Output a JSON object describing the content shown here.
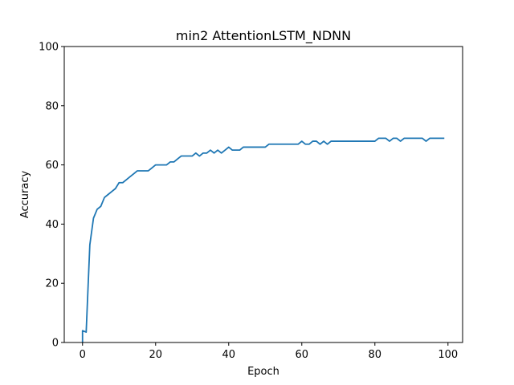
{
  "chart_data": {
    "type": "line",
    "title": "min2 AttentionLSTM_NDNN",
    "xlabel": "Epoch",
    "ylabel": "Accuracy",
    "xlim": [
      -5,
      104
    ],
    "ylim": [
      0,
      100
    ],
    "xticks": [
      0,
      20,
      40,
      60,
      80,
      100
    ],
    "yticks": [
      0,
      20,
      40,
      60,
      80,
      100
    ],
    "grid": false,
    "series": [
      {
        "name": "accuracy",
        "color": "#1f77b4",
        "x": [
          0,
          0,
          1,
          2,
          3,
          4,
          5,
          6,
          7,
          8,
          9,
          10,
          11,
          12,
          13,
          14,
          15,
          16,
          17,
          18,
          19,
          20,
          21,
          22,
          23,
          24,
          25,
          26,
          27,
          28,
          29,
          30,
          31,
          32,
          33,
          34,
          35,
          36,
          37,
          38,
          39,
          40,
          41,
          42,
          43,
          44,
          45,
          46,
          47,
          48,
          49,
          50,
          51,
          52,
          53,
          54,
          55,
          56,
          57,
          58,
          59,
          60,
          61,
          62,
          63,
          64,
          65,
          66,
          67,
          68,
          69,
          70,
          71,
          72,
          73,
          74,
          75,
          76,
          77,
          78,
          79,
          80,
          81,
          82,
          83,
          84,
          85,
          86,
          87,
          88,
          89,
          90,
          91,
          92,
          93,
          94,
          95,
          96,
          97,
          98,
          99
        ],
        "values": [
          0,
          4,
          3.5,
          33,
          42,
          45,
          46,
          49,
          50,
          51,
          52,
          54,
          54,
          55,
          56,
          57,
          58,
          58,
          58,
          58,
          59,
          60,
          60,
          60,
          60,
          61,
          61,
          62,
          63,
          63,
          63,
          63,
          64,
          63,
          64,
          64,
          65,
          64,
          65,
          64,
          65,
          66,
          65,
          65,
          65,
          66,
          66,
          66,
          66,
          66,
          66,
          66,
          67,
          67,
          67,
          67,
          67,
          67,
          67,
          67,
          67,
          68,
          67,
          67,
          68,
          68,
          67,
          68,
          67,
          68,
          68,
          68,
          68,
          68,
          68,
          68,
          68,
          68,
          68,
          68,
          68,
          68,
          69,
          69,
          69,
          68,
          69,
          69,
          68,
          69,
          69,
          69,
          69,
          69,
          69,
          68,
          69,
          69,
          69,
          69,
          69
        ]
      }
    ]
  }
}
